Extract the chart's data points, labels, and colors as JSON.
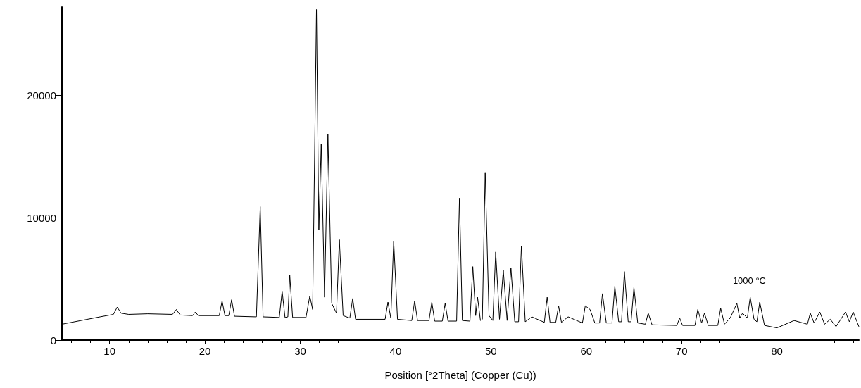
{
  "chart_data": {
    "type": "line",
    "xlabel": "Position [°2Theta] (Copper (Cu))",
    "xlim": [
      5,
      88.6
    ],
    "ylim": [
      0,
      27200
    ],
    "xticks": [
      10,
      20,
      30,
      40,
      50,
      60,
      70,
      80
    ],
    "yticks": [
      0,
      10000,
      20000
    ],
    "grid": false,
    "marker": "none",
    "line_style": "solid",
    "annotations": [
      "1000 °C"
    ],
    "series": [
      {
        "color": "#000000",
        "x": [
          5,
          7,
          9,
          10.4,
          10.8,
          11.2,
          12,
          14,
          16.6,
          17,
          17.4,
          18.7,
          19,
          19.3,
          21.5,
          21.8,
          22.1,
          22.5,
          22.8,
          23.1,
          25.4,
          25.8,
          26.1,
          27.8,
          28.1,
          28.4,
          28.7,
          28.9,
          29.2,
          30.6,
          31,
          31.3,
          31.7,
          31.95,
          32.2,
          32.55,
          32.9,
          33.3,
          33.8,
          34.1,
          34.5,
          35.2,
          35.5,
          35.8,
          38.9,
          39.2,
          39.5,
          39.8,
          40.2,
          41.7,
          42,
          42.3,
          43.5,
          43.8,
          44.1,
          44.9,
          45.2,
          45.5,
          46.4,
          46.7,
          47,
          47.8,
          48.1,
          48.4,
          48.6,
          48.9,
          49.1,
          49.4,
          49.8,
          50.2,
          50.5,
          50.9,
          51.3,
          51.7,
          52.1,
          52.5,
          52.9,
          53.2,
          53.6,
          54.3,
          55.6,
          55.9,
          56.2,
          56.8,
          57.1,
          57.4,
          58.1,
          59.6,
          59.9,
          60.4,
          60.9,
          61.4,
          61.7,
          62.1,
          62.7,
          63,
          63.4,
          63.7,
          64,
          64.4,
          64.7,
          65,
          65.4,
          66.2,
          66.5,
          66.9,
          69.5,
          69.8,
          70.1,
          71.4,
          71.7,
          72.1,
          72.4,
          72.8,
          73.8,
          74.1,
          74.5,
          75.1,
          75.8,
          76.1,
          76.4,
          76.9,
          77.2,
          77.6,
          77.9,
          78.2,
          78.7,
          80,
          81.8,
          83.2,
          83.5,
          83.9,
          84.5,
          85,
          85.6,
          86.2,
          87.2,
          87.6,
          88,
          88.6
        ],
        "values": [
          1300,
          1600,
          1900,
          2100,
          2700,
          2200,
          2100,
          2150,
          2100,
          2500,
          2050,
          2000,
          2300,
          2000,
          2000,
          3200,
          2000,
          2000,
          3300,
          1950,
          1900,
          10900,
          1900,
          1850,
          4000,
          1850,
          1900,
          5300,
          1850,
          1850,
          3600,
          2500,
          27000,
          9000,
          16000,
          3500,
          16800,
          3000,
          2200,
          8200,
          2000,
          1800,
          3400,
          1700,
          1700,
          3100,
          1800,
          8100,
          1700,
          1600,
          3200,
          1600,
          1600,
          3100,
          1550,
          1550,
          3000,
          1550,
          1550,
          11600,
          1600,
          1550,
          6000,
          2000,
          3500,
          1600,
          1700,
          13700,
          2000,
          1600,
          7200,
          1700,
          5700,
          1600,
          5900,
          1500,
          1500,
          7700,
          1500,
          1900,
          1450,
          3500,
          1450,
          1450,
          2800,
          1450,
          1900,
          1400,
          2800,
          2500,
          1400,
          1400,
          3800,
          1400,
          1400,
          4400,
          1500,
          1500,
          5600,
          1500,
          1500,
          4300,
          1400,
          1300,
          2200,
          1250,
          1200,
          1800,
          1200,
          1200,
          2500,
          1400,
          2200,
          1200,
          1200,
          2600,
          1300,
          1800,
          3000,
          1800,
          2200,
          1800,
          3500,
          1700,
          1500,
          3100,
          1200,
          1000,
          1600,
          1300,
          2200,
          1400,
          2300,
          1300,
          1700,
          1100,
          2300,
          1500,
          2300,
          1100
        ]
      }
    ]
  }
}
